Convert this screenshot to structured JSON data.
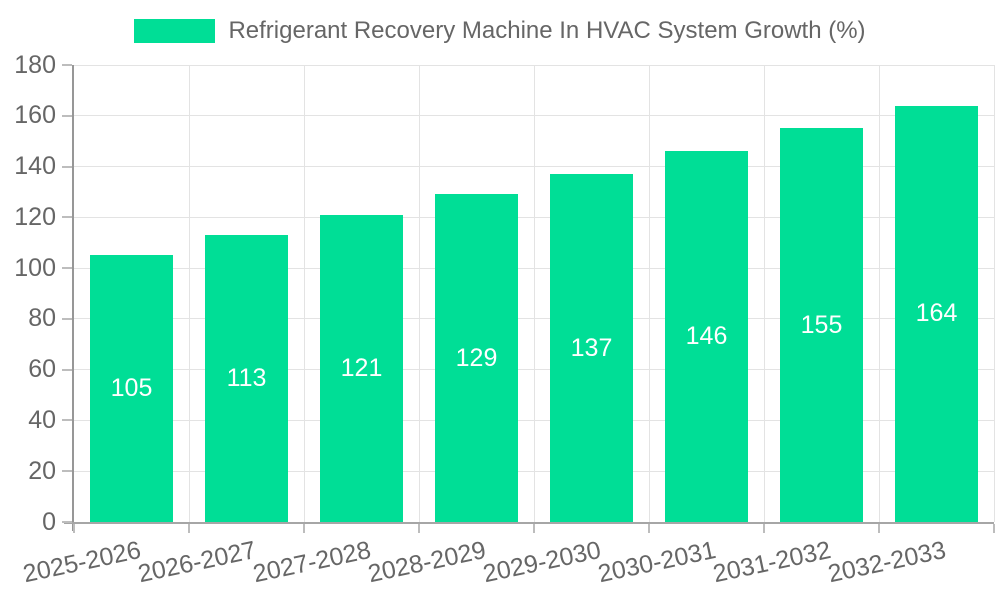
{
  "chart_data": {
    "type": "bar",
    "title": "Refrigerant Recovery Machine In HVAC System Growth (%)",
    "legend_position": "top",
    "legend": [
      {
        "label": "Refrigerant Recovery Machine In HVAC System Growth (%)",
        "color": "#00DE96"
      }
    ],
    "categories": [
      "2025-2026",
      "2026-2027",
      "2027-2028",
      "2028-2029",
      "2029-2030",
      "2030-2031",
      "2031-2032",
      "2032-2033"
    ],
    "series": [
      {
        "name": "Refrigerant Recovery Machine In HVAC System Growth (%)",
        "values": [
          105,
          113,
          121,
          129,
          137,
          146,
          155,
          164
        ]
      }
    ],
    "value_labels": {
      "visible": true,
      "position": "center",
      "color": "#FFFFFF"
    },
    "xlabel": "",
    "ylabel": "",
    "ylim": [
      0,
      180
    ],
    "y_ticks": [
      0,
      20,
      40,
      60,
      80,
      100,
      120,
      140,
      160,
      180
    ],
    "grid": true,
    "x_label_rotation_deg": -12,
    "colors": {
      "bar": "#00DE96",
      "text": "#666666",
      "grid": "#E3E3E3",
      "axis": "#9A9A9A",
      "background": "#FFFFFF"
    }
  }
}
